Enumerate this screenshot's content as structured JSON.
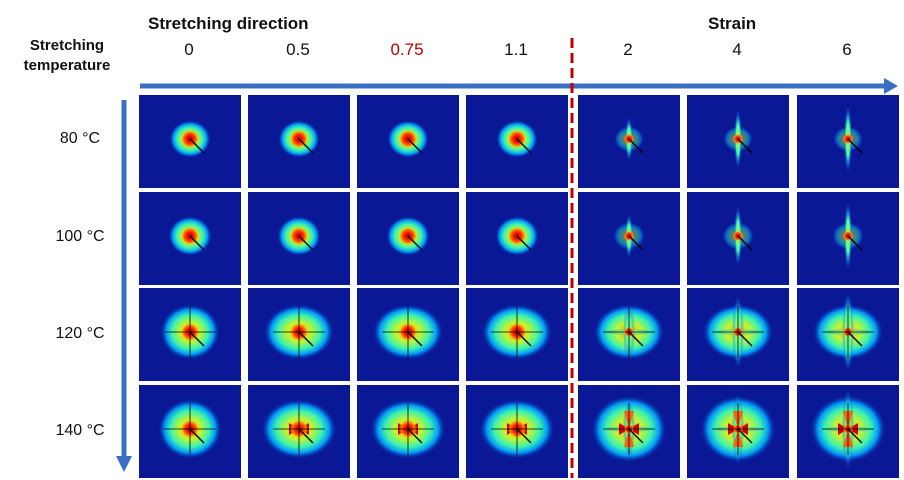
{
  "header": {
    "title": "Stretching direction",
    "strain_title": "Strain",
    "row_title_line1": "Stretching",
    "row_title_line2": "temperature"
  },
  "strains": [
    "0",
    "0.5",
    "0.75",
    "1.1",
    "2",
    "4",
    "6"
  ],
  "highlighted_strain": "0.75",
  "temperatures": [
    "80 °C",
    "100 °C",
    "120 °C",
    "140 °C"
  ],
  "colors": {
    "arrow": "#3a6fc4",
    "divider": "#c00000",
    "highlight_text": "#c00000",
    "cell_background": "#0a1896",
    "pattern_colormap": [
      "#0a1896",
      "#0050ff",
      "#00c8ff",
      "#40ffb0",
      "#c8ff30",
      "#ffd000",
      "#ff6000",
      "#d00000"
    ]
  },
  "icons": {
    "horizontal_arrow": "arrow-right-icon",
    "vertical_arrow": "arrow-down-icon"
  }
}
